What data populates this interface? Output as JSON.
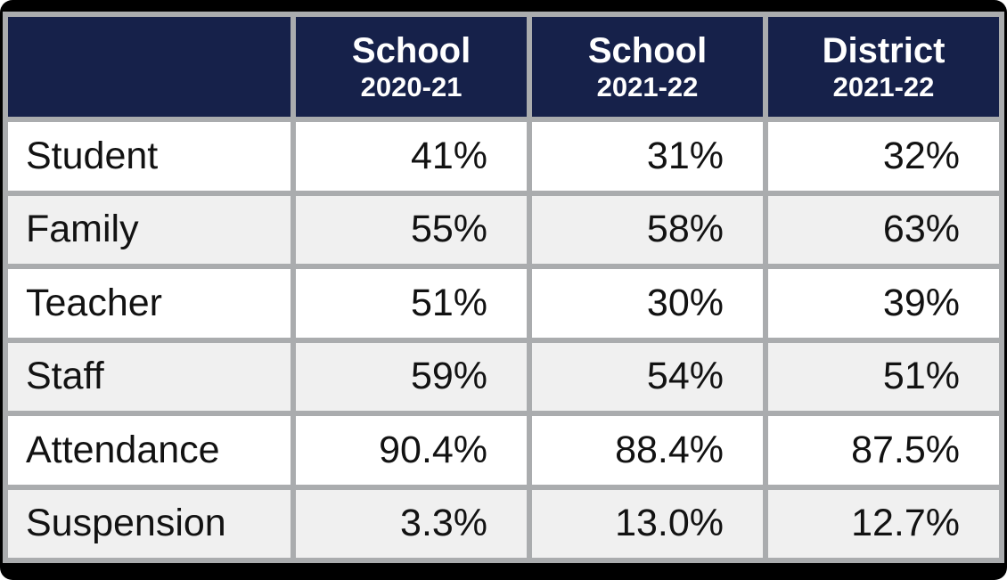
{
  "header": {
    "cols": [
      {
        "title": "",
        "subtitle": ""
      },
      {
        "title": "School",
        "subtitle": "2020-21"
      },
      {
        "title": "School",
        "subtitle": "2021-22"
      },
      {
        "title": "District",
        "subtitle": "2021-22"
      }
    ]
  },
  "chart_data": {
    "type": "table",
    "title": "",
    "columns": [
      "",
      "School 2020-21",
      "School 2021-22",
      "District 2021-22"
    ],
    "rows": [
      [
        "Student",
        "41%",
        "31%",
        "32%"
      ],
      [
        "Family",
        "55%",
        "58%",
        "63%"
      ],
      [
        "Teacher",
        "51%",
        "30%",
        "39%"
      ],
      [
        "Staff",
        "59%",
        "54%",
        "51%"
      ],
      [
        "Attendance",
        "90.4%",
        "88.4%",
        "87.5%"
      ],
      [
        "Suspension",
        "3.3%",
        "13.0%",
        "12.7%"
      ]
    ],
    "layout_hints": {
      "header_style": "dark-navy, white bold text, two-line headers",
      "body_style": "alternating white and light-gray rows, labels left-aligned, values right-aligned",
      "grid": "thick gray cell borders, black rounded outer frame"
    }
  },
  "colors": {
    "frame": "#000000",
    "border": "#aaacae",
    "header_bg": "#16214a",
    "header_text": "#ffffff",
    "row_bg": "#ffffff",
    "row_alt_bg": "#f0f0f0",
    "body_text": "#121212"
  }
}
